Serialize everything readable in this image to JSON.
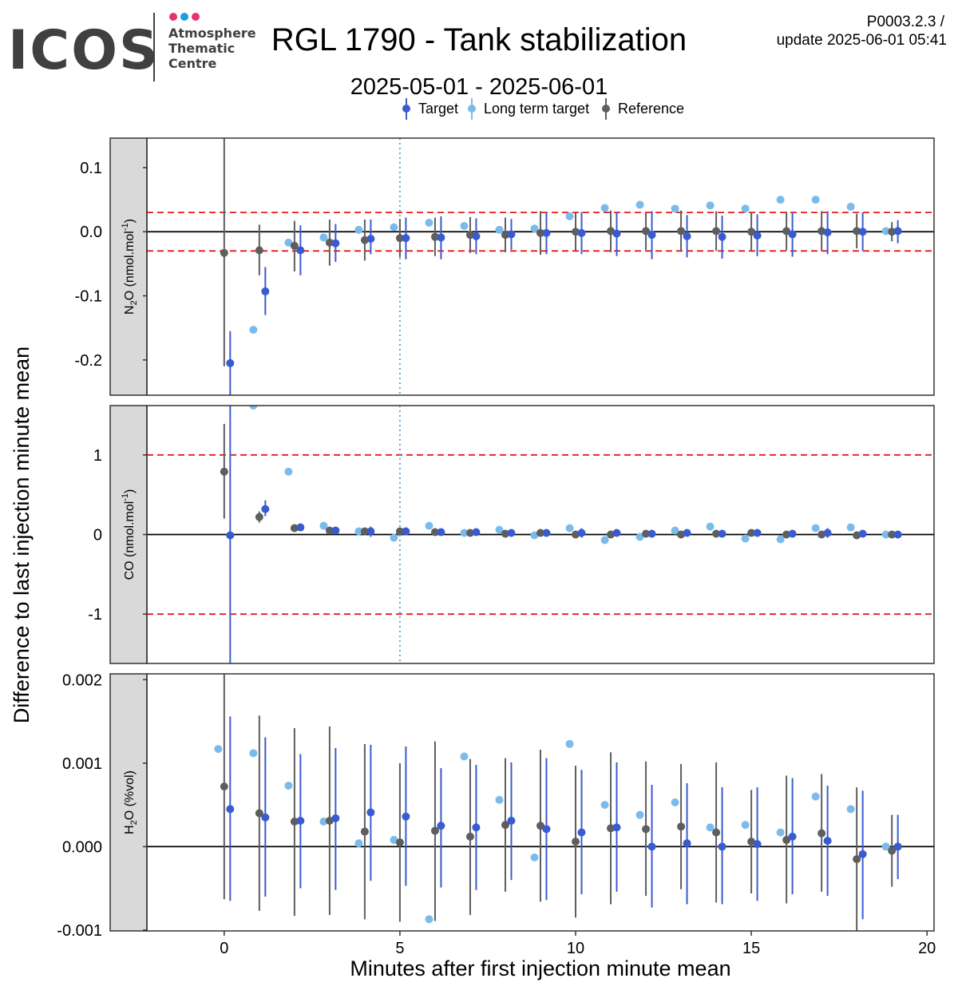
{
  "logo": {
    "name": "ICOS",
    "sub": [
      "Atmosphere",
      "Thematic",
      "Centre"
    ],
    "dot_colors": [
      "#e8336e",
      "#1e9be6",
      "#e8336e"
    ]
  },
  "title": "RGL 1790 - Tank stabilization",
  "subtitle": "2025-05-01 - 2025-06-01",
  "version": "P0003.2.3 /",
  "update": "update  2025-06-01 05:41",
  "colors": {
    "target": "#3a5bd0",
    "long_term_target": "#7bbbeb",
    "reference": "#5e5e5e",
    "threshold": "#e8191b",
    "vline": "#6aa7c8",
    "strip": "#d9d9d9"
  },
  "chart_data": {
    "type": "scatter",
    "xlabel": "Minutes after first injection minute mean",
    "ylabel": "Difference to last injection minute mean",
    "xlim": [
      -2.2,
      20.2
    ],
    "x_ticks": [
      "0",
      "5",
      "10",
      "15",
      "20"
    ],
    "vline_x": 5,
    "legend": {
      "placement": "top",
      "entries": [
        "Target",
        "Long term target",
        "Reference"
      ]
    },
    "panels": [
      {
        "name": "n2o",
        "strip_main": "N",
        "strip_sub": "2",
        "strip_rest": "O (nmol.mol",
        "strip_sup": "-1",
        "strip_close": ")",
        "ylim": [
          -0.255,
          0.146
        ],
        "y_ticks": [
          "0.1",
          "0.0",
          "-0.1",
          "-0.2"
        ],
        "y_tick_values": [
          0.1,
          0.0,
          -0.1,
          -0.2
        ],
        "thresholds": [
          0.03,
          -0.03
        ],
        "target": [
          [
            0.17,
            -0.205,
            -0.255,
            -0.155
          ],
          [
            1.17,
            -0.093,
            -0.13,
            -0.055
          ],
          [
            2.17,
            -0.029,
            -0.068,
            0.01
          ],
          [
            3.17,
            -0.018,
            -0.047,
            0.012
          ],
          [
            4.17,
            -0.011,
            -0.035,
            0.019
          ],
          [
            5.17,
            -0.01,
            -0.043,
            0.022
          ],
          [
            6.17,
            -0.009,
            -0.043,
            0.024
          ],
          [
            7.17,
            -0.007,
            -0.035,
            0.021
          ],
          [
            8.17,
            -0.004,
            -0.028,
            0.02
          ],
          [
            9.17,
            -0.002,
            -0.035,
            0.03
          ],
          [
            10.17,
            -0.002,
            -0.035,
            0.031
          ],
          [
            11.17,
            -0.003,
            -0.038,
            0.031
          ],
          [
            12.17,
            -0.005,
            -0.043,
            0.032
          ],
          [
            13.17,
            -0.007,
            -0.04,
            0.026
          ],
          [
            14.17,
            -0.008,
            -0.042,
            0.025
          ],
          [
            15.17,
            -0.006,
            -0.038,
            0.027
          ],
          [
            16.17,
            -0.004,
            -0.039,
            0.03
          ],
          [
            17.17,
            -0.001,
            -0.035,
            0.032
          ],
          [
            18.17,
            0.0,
            -0.03,
            0.03
          ],
          [
            19.17,
            0.001,
            -0.018,
            0.018
          ]
        ],
        "long_term": [
          [
            0.83,
            -0.153
          ],
          [
            1.83,
            -0.017
          ],
          [
            2.83,
            -0.009
          ],
          [
            3.83,
            0.003
          ],
          [
            4.83,
            0.007
          ],
          [
            5.83,
            0.014
          ],
          [
            6.83,
            0.009
          ],
          [
            7.83,
            0.003
          ],
          [
            8.83,
            0.005
          ],
          [
            9.83,
            0.024
          ],
          [
            10.83,
            0.037
          ],
          [
            11.83,
            0.042
          ],
          [
            12.83,
            0.036
          ],
          [
            13.83,
            0.041
          ],
          [
            14.83,
            0.036
          ],
          [
            15.83,
            0.05
          ],
          [
            16.83,
            0.05
          ],
          [
            17.83,
            0.039
          ],
          [
            18.83,
            0.001
          ]
        ],
        "reference": [
          [
            0.0,
            -0.033,
            -0.21,
            0.146
          ],
          [
            1.0,
            -0.029,
            -0.068,
            0.011
          ],
          [
            2.0,
            -0.022,
            -0.062,
            0.017
          ],
          [
            3.0,
            -0.017,
            -0.053,
            0.019
          ],
          [
            4.0,
            -0.013,
            -0.045,
            0.019
          ],
          [
            5.0,
            -0.01,
            -0.04,
            0.02
          ],
          [
            6.0,
            -0.008,
            -0.038,
            0.022
          ],
          [
            7.0,
            -0.005,
            -0.033,
            0.023
          ],
          [
            8.0,
            -0.005,
            -0.032,
            0.022
          ],
          [
            9.0,
            -0.002,
            -0.036,
            0.032
          ],
          [
            10.0,
            0.0,
            -0.03,
            0.031
          ],
          [
            11.0,
            0.001,
            -0.032,
            0.033
          ],
          [
            12.0,
            0.001,
            -0.028,
            0.029
          ],
          [
            13.0,
            0.001,
            -0.031,
            0.033
          ],
          [
            14.0,
            0.001,
            -0.03,
            0.032
          ],
          [
            15.0,
            0.0,
            -0.031,
            0.031
          ],
          [
            16.0,
            0.001,
            -0.029,
            0.031
          ],
          [
            17.0,
            0.001,
            -0.03,
            0.032
          ],
          [
            18.0,
            0.001,
            -0.026,
            0.028
          ],
          [
            19.0,
            0.0,
            -0.015,
            0.015
          ]
        ]
      },
      {
        "name": "co",
        "strip_main": "CO (nmol.mol",
        "strip_sub": "",
        "strip_rest": "",
        "strip_sup": "-1",
        "strip_close": ")",
        "ylim": [
          -1.62,
          1.62
        ],
        "y_ticks": [
          "1",
          "0",
          "-1"
        ],
        "y_tick_values": [
          1,
          0,
          -1
        ],
        "thresholds": [
          1,
          -1
        ],
        "target": [
          [
            0.17,
            -0.01,
            -1.62,
            1.62
          ],
          [
            1.17,
            0.32,
            0.23,
            0.43
          ],
          [
            2.17,
            0.09,
            0.04,
            0.14
          ],
          [
            3.17,
            0.05,
            0.02,
            0.08
          ],
          [
            4.17,
            0.04,
            -0.03,
            0.1
          ],
          [
            5.17,
            0.04,
            0.0,
            0.08
          ],
          [
            6.17,
            0.03,
            0.0,
            0.06
          ],
          [
            7.17,
            0.03,
            -0.01,
            0.07
          ],
          [
            8.17,
            0.02,
            -0.02,
            0.06
          ],
          [
            9.17,
            0.02,
            -0.01,
            0.05
          ],
          [
            10.17,
            0.02,
            -0.04,
            0.08
          ],
          [
            11.17,
            0.02,
            -0.02,
            0.06
          ],
          [
            12.17,
            0.01,
            -0.02,
            0.04
          ],
          [
            13.17,
            0.02,
            -0.02,
            0.06
          ],
          [
            14.17,
            0.01,
            -0.01,
            0.04
          ],
          [
            15.17,
            0.02,
            -0.02,
            0.06
          ],
          [
            16.17,
            0.01,
            -0.03,
            0.05
          ],
          [
            17.17,
            0.02,
            -0.04,
            0.08
          ],
          [
            18.17,
            0.01,
            -0.02,
            0.04
          ],
          [
            19.17,
            0.0,
            -0.02,
            0.02
          ]
        ],
        "long_term": [
          [
            0.83,
            1.62
          ],
          [
            1.83,
            0.79
          ],
          [
            2.83,
            0.11
          ],
          [
            3.83,
            0.04
          ],
          [
            4.83,
            -0.04
          ],
          [
            5.83,
            0.11
          ],
          [
            6.83,
            0.02
          ],
          [
            7.83,
            0.06
          ],
          [
            8.83,
            -0.01
          ],
          [
            9.83,
            0.08
          ],
          [
            10.83,
            -0.07
          ],
          [
            11.83,
            -0.03
          ],
          [
            12.83,
            0.05
          ],
          [
            13.83,
            0.1
          ],
          [
            14.83,
            -0.05
          ],
          [
            15.83,
            -0.06
          ],
          [
            16.83,
            0.08
          ],
          [
            17.83,
            0.09
          ],
          [
            18.83,
            0.0
          ]
        ],
        "reference": [
          [
            0.0,
            0.79,
            0.2,
            1.39
          ],
          [
            1.0,
            0.22,
            0.15,
            0.29
          ],
          [
            2.0,
            0.08,
            0.06,
            0.11
          ],
          [
            3.0,
            0.05,
            0.02,
            0.08
          ],
          [
            4.0,
            0.04,
            0.01,
            0.07
          ],
          [
            5.0,
            0.04,
            0.01,
            0.07
          ],
          [
            6.0,
            0.03,
            0.01,
            0.05
          ],
          [
            7.0,
            0.02,
            0.0,
            0.05
          ],
          [
            8.0,
            0.01,
            -0.02,
            0.05
          ],
          [
            9.0,
            0.02,
            -0.01,
            0.05
          ],
          [
            10.0,
            0.0,
            -0.02,
            0.02
          ],
          [
            11.0,
            0.0,
            -0.03,
            0.03
          ],
          [
            12.0,
            0.01,
            -0.02,
            0.04
          ],
          [
            13.0,
            0.0,
            -0.03,
            0.03
          ],
          [
            14.0,
            0.01,
            -0.01,
            0.03
          ],
          [
            15.0,
            0.02,
            -0.01,
            0.05
          ],
          [
            16.0,
            0.0,
            -0.02,
            0.02
          ],
          [
            17.0,
            0.0,
            -0.02,
            0.02
          ],
          [
            18.0,
            -0.01,
            -0.03,
            0.01
          ],
          [
            19.0,
            0.0,
            -0.02,
            0.02
          ]
        ]
      },
      {
        "name": "h2o",
        "strip_main": "H",
        "strip_sub": "2",
        "strip_rest": "O (%vol)",
        "strip_sup": "",
        "strip_close": "",
        "ylim": [
          -0.00101,
          0.00207
        ],
        "y_ticks": [
          "0.002",
          "0.001",
          "0.000",
          "-0.001"
        ],
        "y_tick_values": [
          0.002,
          0.001,
          0.0,
          -0.001
        ],
        "thresholds": [],
        "target": [
          [
            0.17,
            0.00045,
            -0.00065,
            0.00156
          ],
          [
            1.17,
            0.00035,
            -0.0006,
            0.00131
          ],
          [
            2.17,
            0.00031,
            -0.0005,
            0.00111
          ],
          [
            3.17,
            0.00034,
            -0.00052,
            0.00118
          ],
          [
            4.17,
            0.00041,
            -0.00041,
            0.00122
          ],
          [
            5.17,
            0.00036,
            -0.00047,
            0.0012
          ],
          [
            6.17,
            0.00025,
            -0.00049,
            0.00094
          ],
          [
            7.17,
            0.00023,
            -0.00052,
            0.00098
          ],
          [
            8.17,
            0.00031,
            -0.0004,
            0.00101
          ],
          [
            9.17,
            0.00021,
            -0.00064,
            0.00106
          ],
          [
            10.17,
            0.00017,
            -0.00057,
            0.00092
          ],
          [
            11.17,
            0.00023,
            -0.00054,
            0.00101
          ],
          [
            12.17,
            0.0,
            -0.00073,
            0.00074
          ],
          [
            13.17,
            4e-05,
            -0.00069,
            0.00076
          ],
          [
            14.17,
            0.0,
            -0.00069,
            0.00071
          ],
          [
            15.17,
            3e-05,
            -0.00065,
            0.00071
          ],
          [
            16.17,
            0.00012,
            -0.00057,
            0.00082
          ],
          [
            17.17,
            7e-05,
            -0.00059,
            0.00073
          ],
          [
            18.17,
            -9e-05,
            -0.00087,
            0.00067
          ],
          [
            19.17,
            0.0,
            -0.00039,
            0.00038
          ]
        ],
        "long_term": [
          [
            -0.17,
            0.00117
          ],
          [
            0.83,
            0.00112
          ],
          [
            1.83,
            0.00073
          ],
          [
            2.83,
            0.0003
          ],
          [
            3.83,
            4e-05
          ],
          [
            4.83,
            8e-05
          ],
          [
            5.83,
            -0.00087
          ],
          [
            6.83,
            0.00108
          ],
          [
            7.83,
            0.00056
          ],
          [
            8.83,
            -0.00013
          ],
          [
            9.83,
            0.00123
          ],
          [
            10.83,
            0.0005
          ],
          [
            11.83,
            0.00038
          ],
          [
            12.83,
            0.00053
          ],
          [
            13.83,
            0.00023
          ],
          [
            14.83,
            0.00026
          ],
          [
            15.83,
            0.00017
          ],
          [
            16.83,
            0.0006
          ],
          [
            17.83,
            0.00045
          ],
          [
            18.83,
            0.0
          ]
        ],
        "reference": [
          [
            0.0,
            0.00072,
            -0.00063,
            0.00207
          ],
          [
            1.0,
            0.0004,
            -0.00077,
            0.00157
          ],
          [
            2.0,
            0.0003,
            -0.00083,
            0.00142
          ],
          [
            3.0,
            0.00031,
            -0.00082,
            0.00144
          ],
          [
            4.0,
            0.00018,
            -0.00087,
            0.00123
          ],
          [
            5.0,
            5e-05,
            -0.0009,
            0.001
          ],
          [
            6.0,
            0.00019,
            -0.00089,
            0.00126
          ],
          [
            7.0,
            0.00012,
            -0.00082,
            0.00105
          ],
          [
            8.0,
            0.00026,
            -0.00054,
            0.00106
          ],
          [
            9.0,
            0.00025,
            -0.00066,
            0.00116
          ],
          [
            10.0,
            6e-05,
            -0.00085,
            0.00097
          ],
          [
            11.0,
            0.00022,
            -0.00069,
            0.00113
          ],
          [
            12.0,
            0.00021,
            -0.00059,
            0.00102
          ],
          [
            13.0,
            0.00024,
            -0.00051,
            0.00099
          ],
          [
            14.0,
            0.00017,
            -0.00067,
            0.00101
          ],
          [
            15.0,
            6e-05,
            -0.00056,
            0.00068
          ],
          [
            16.0,
            8e-05,
            -0.00068,
            0.00085
          ],
          [
            17.0,
            0.00016,
            -0.00054,
            0.00087
          ],
          [
            18.0,
            -0.00015,
            -0.00101,
            0.00071
          ],
          [
            19.0,
            -5e-05,
            -0.00048,
            0.00038
          ]
        ]
      }
    ]
  }
}
